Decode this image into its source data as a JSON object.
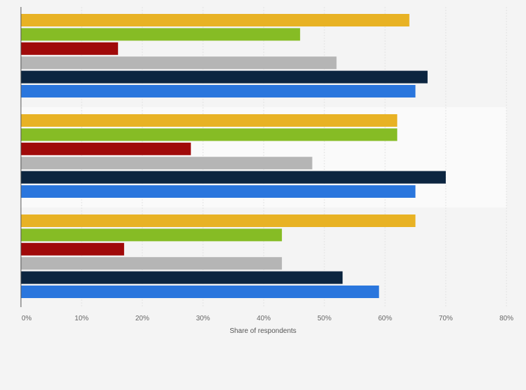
{
  "chart_data": {
    "type": "bar",
    "orientation": "horizontal",
    "title": "",
    "xlabel": "Share of respondents",
    "ylabel": "",
    "xlim": [
      0,
      80
    ],
    "x_ticks": [
      0,
      10,
      20,
      30,
      40,
      50,
      60,
      70,
      80
    ],
    "tick_suffix": "%",
    "grid": true,
    "legend": "none",
    "categories": [
      "",
      "",
      ""
    ],
    "series": [
      {
        "color": "#e8b224",
        "values": [
          64,
          62,
          65
        ]
      },
      {
        "color": "#86bc25",
        "values": [
          46,
          62,
          43
        ]
      },
      {
        "color": "#a00a0a",
        "values": [
          16,
          28,
          17
        ]
      },
      {
        "color": "#b5b5b5",
        "values": [
          52,
          48,
          43
        ]
      },
      {
        "color": "#0c2540",
        "values": [
          67,
          70,
          53
        ]
      },
      {
        "color": "#2a76dd",
        "values": [
          65,
          65,
          59
        ]
      }
    ]
  }
}
